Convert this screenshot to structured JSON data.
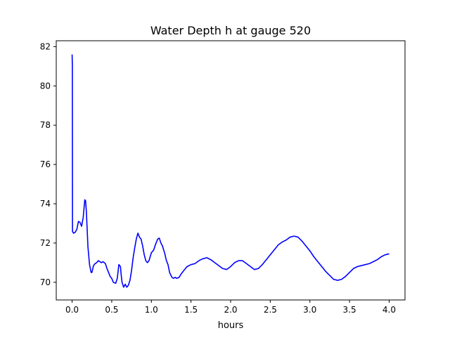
{
  "chart_data": {
    "type": "line",
    "title": "Water Depth h at gauge 520",
    "xlabel": "hours",
    "ylabel": "",
    "xlim": [
      -0.2,
      4.2
    ],
    "ylim": [
      69.1,
      82.3
    ],
    "xticks": [
      "0.0",
      "0.5",
      "1.0",
      "1.5",
      "2.0",
      "2.5",
      "3.0",
      "3.5",
      "4.0"
    ],
    "xtick_values": [
      0,
      0.5,
      1.0,
      1.5,
      2.0,
      2.5,
      3.0,
      3.5,
      4.0
    ],
    "yticks": [
      "70",
      "72",
      "74",
      "76",
      "78",
      "80",
      "82"
    ],
    "ytick_values": [
      70,
      72,
      74,
      76,
      78,
      80,
      82
    ],
    "grid": false,
    "colors": {
      "series": "#0000ff",
      "axes": "#000000",
      "background": "#ffffff"
    },
    "series": [
      {
        "name": "",
        "x": [
          0.0,
          0.003,
          0.005,
          0.01,
          0.02,
          0.04,
          0.06,
          0.08,
          0.1,
          0.12,
          0.14,
          0.16,
          0.17,
          0.18,
          0.19,
          0.2,
          0.22,
          0.24,
          0.25,
          0.27,
          0.29,
          0.31,
          0.33,
          0.35,
          0.37,
          0.39,
          0.42,
          0.44,
          0.46,
          0.48,
          0.5,
          0.52,
          0.55,
          0.57,
          0.59,
          0.61,
          0.62,
          0.63,
          0.65,
          0.67,
          0.69,
          0.71,
          0.73,
          0.75,
          0.77,
          0.79,
          0.81,
          0.83,
          0.85,
          0.87,
          0.89,
          0.91,
          0.93,
          0.95,
          0.97,
          1.0,
          1.03,
          1.05,
          1.08,
          1.1,
          1.12,
          1.14,
          1.17,
          1.19,
          1.21,
          1.23,
          1.26,
          1.28,
          1.3,
          1.32,
          1.35,
          1.38,
          1.4,
          1.42,
          1.45,
          1.5,
          1.55,
          1.6,
          1.65,
          1.7,
          1.75,
          1.8,
          1.85,
          1.9,
          1.95,
          2.0,
          2.05,
          2.1,
          2.15,
          2.2,
          2.25,
          2.3,
          2.35,
          2.4,
          2.45,
          2.5,
          2.55,
          2.6,
          2.65,
          2.7,
          2.75,
          2.8,
          2.85,
          2.9,
          2.95,
          3.0,
          3.05,
          3.1,
          3.15,
          3.2,
          3.25,
          3.3,
          3.35,
          3.4,
          3.45,
          3.5,
          3.55,
          3.6,
          3.65,
          3.7,
          3.75,
          3.8,
          3.85,
          3.9,
          3.95,
          4.0
        ],
        "y": [
          81.6,
          81.1,
          72.6,
          72.55,
          72.5,
          72.55,
          72.7,
          73.1,
          73.05,
          72.85,
          73.3,
          74.2,
          74.15,
          73.6,
          72.7,
          71.8,
          70.9,
          70.5,
          70.5,
          70.85,
          70.95,
          71.0,
          71.1,
          71.05,
          71.0,
          71.05,
          70.95,
          70.7,
          70.5,
          70.3,
          70.2,
          70.0,
          69.95,
          70.2,
          70.9,
          70.8,
          70.35,
          70.0,
          69.75,
          69.9,
          69.75,
          69.85,
          70.1,
          70.6,
          71.25,
          71.75,
          72.2,
          72.5,
          72.3,
          72.2,
          71.85,
          71.4,
          71.1,
          71.0,
          71.1,
          71.5,
          71.65,
          71.9,
          72.2,
          72.25,
          72.0,
          71.85,
          71.45,
          71.1,
          70.9,
          70.5,
          70.25,
          70.2,
          70.25,
          70.2,
          70.25,
          70.45,
          70.55,
          70.65,
          70.8,
          70.9,
          70.95,
          71.1,
          71.2,
          71.25,
          71.15,
          71.0,
          70.85,
          70.7,
          70.65,
          70.8,
          71.0,
          71.1,
          71.1,
          70.95,
          70.8,
          70.65,
          70.7,
          70.9,
          71.15,
          71.4,
          71.65,
          71.9,
          72.05,
          72.15,
          72.3,
          72.35,
          72.3,
          72.1,
          71.85,
          71.6,
          71.3,
          71.05,
          70.8,
          70.55,
          70.35,
          70.15,
          70.1,
          70.15,
          70.3,
          70.5,
          70.7,
          70.8,
          70.85,
          70.9,
          70.95,
          71.05,
          71.15,
          71.3,
          71.4,
          71.45
        ]
      }
    ]
  }
}
